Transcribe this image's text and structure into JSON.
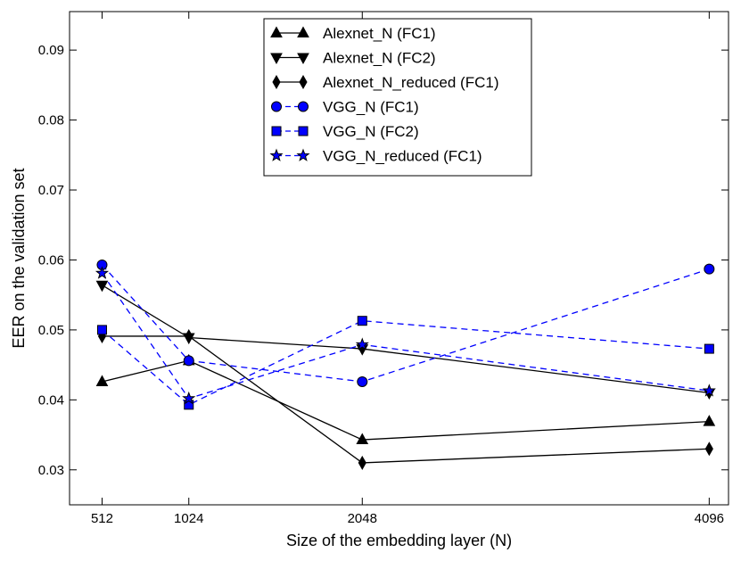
{
  "chart_data": {
    "type": "line",
    "title": "",
    "xlabel": "Size of the embedding layer (N)",
    "ylabel": "EER on the validation set",
    "x": [
      512,
      1024,
      2048,
      4096
    ],
    "x_tick_labels": [
      "512",
      "1024",
      "2048",
      "4096"
    ],
    "y_tick_labels": [
      "0.03",
      "0.04",
      "0.05",
      "0.06",
      "0.07",
      "0.08",
      "0.09"
    ],
    "xlim": [
      320,
      4210
    ],
    "ylim": [
      0.025,
      0.0955
    ],
    "grid": false,
    "legend_position": "top-center",
    "series": [
      {
        "name": "Alexnet_N (FC1)",
        "values": [
          0.0426,
          0.0456,
          0.0343,
          0.0369
        ],
        "color": "#000000",
        "linestyle": "solid",
        "marker": "triangle-up"
      },
      {
        "name": "Alexnet_N (FC2)",
        "values": [
          0.0564,
          0.0489,
          0.0473,
          0.041
        ],
        "color": "#000000",
        "linestyle": "solid",
        "marker": "triangle-down"
      },
      {
        "name": "Alexnet_N_reduced (FC1)",
        "values": [
          0.0491,
          0.0491,
          0.031,
          0.033
        ],
        "color": "#000000",
        "linestyle": "solid",
        "marker": "diamond"
      },
      {
        "name": "VGG_N (FC1)",
        "values": [
          0.0593,
          0.0456,
          0.0426,
          0.0587
        ],
        "color": "#0000ff",
        "linestyle": "dashed",
        "marker": "circle"
      },
      {
        "name": "VGG_N (FC2)",
        "values": [
          0.05,
          0.0393,
          0.0513,
          0.0473
        ],
        "color": "#0000ff",
        "linestyle": "dashed",
        "marker": "square"
      },
      {
        "name": "VGG_N_reduced (FC1)",
        "values": [
          0.0581,
          0.0402,
          0.0479,
          0.0413
        ],
        "color": "#0000ff",
        "linestyle": "dashed",
        "marker": "star"
      }
    ]
  }
}
